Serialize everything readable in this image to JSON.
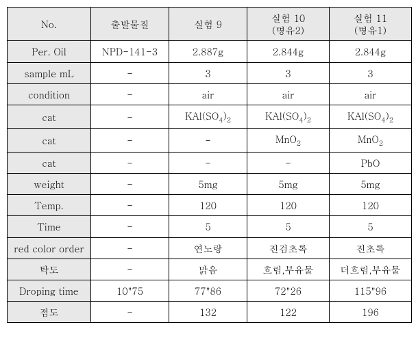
{
  "cols": [
    {
      "line1": "No.",
      "line2": ""
    },
    {
      "line1": "출발물질",
      "line2": ""
    },
    {
      "line1": "실험 9",
      "line2": ""
    },
    {
      "line1": "실험 10",
      "line2": "(명유2)"
    },
    {
      "line1": "실험 11",
      "line2": "(명유1)"
    }
  ],
  "rows": [
    {
      "label": "Per. Oil",
      "c1": "NPD-141-3",
      "c2": "2.887g",
      "c3": "2.844g",
      "c4": "2.844g"
    },
    {
      "label": "sample mL",
      "c1": "-",
      "c2": "3",
      "c3": "3",
      "c4": "3"
    },
    {
      "label": "condition",
      "c1": "-",
      "c2": "air",
      "c3": "air",
      "c4": "air"
    },
    {
      "label": "cat",
      "c1": "-",
      "c2": "KAl(SO4)2",
      "c3": "KAl(SO4)2",
      "c4": "KAl(SO4)2",
      "chem": true
    },
    {
      "label": "cat",
      "c1": "-",
      "c2": "-",
      "c3": "MnO2",
      "c4": "MnO2",
      "chem": true
    },
    {
      "label": "cat",
      "c1": "-",
      "c2": "-",
      "c3": "-",
      "c4": "PbO"
    },
    {
      "label": "weight",
      "c1": "-",
      "c2": "5mg",
      "c3": "5mg",
      "c4": "5mg"
    },
    {
      "label": "Temp.",
      "c1": "-",
      "c2": "120",
      "c3": "120",
      "c4": "120"
    },
    {
      "label": "Time",
      "c1": "-",
      "c2": "5",
      "c3": "5",
      "c4": "5"
    },
    {
      "label": "red color order",
      "c1": "-",
      "c2": "연노랑",
      "c3": "진검초록",
      "c4": "진초록"
    },
    {
      "label": "탁도",
      "c1": "-",
      "c2": "맑음",
      "c3": "흐림,부유물",
      "c4": "더흐림,부유물"
    },
    {
      "label": "Droping time",
      "c1": "10\"75",
      "c2": "77\"86",
      "c3": "72\"26",
      "c4": "115\"96"
    },
    {
      "label": "점도",
      "c1": "-",
      "c2": "132",
      "c3": "122",
      "c4": "196"
    }
  ]
}
